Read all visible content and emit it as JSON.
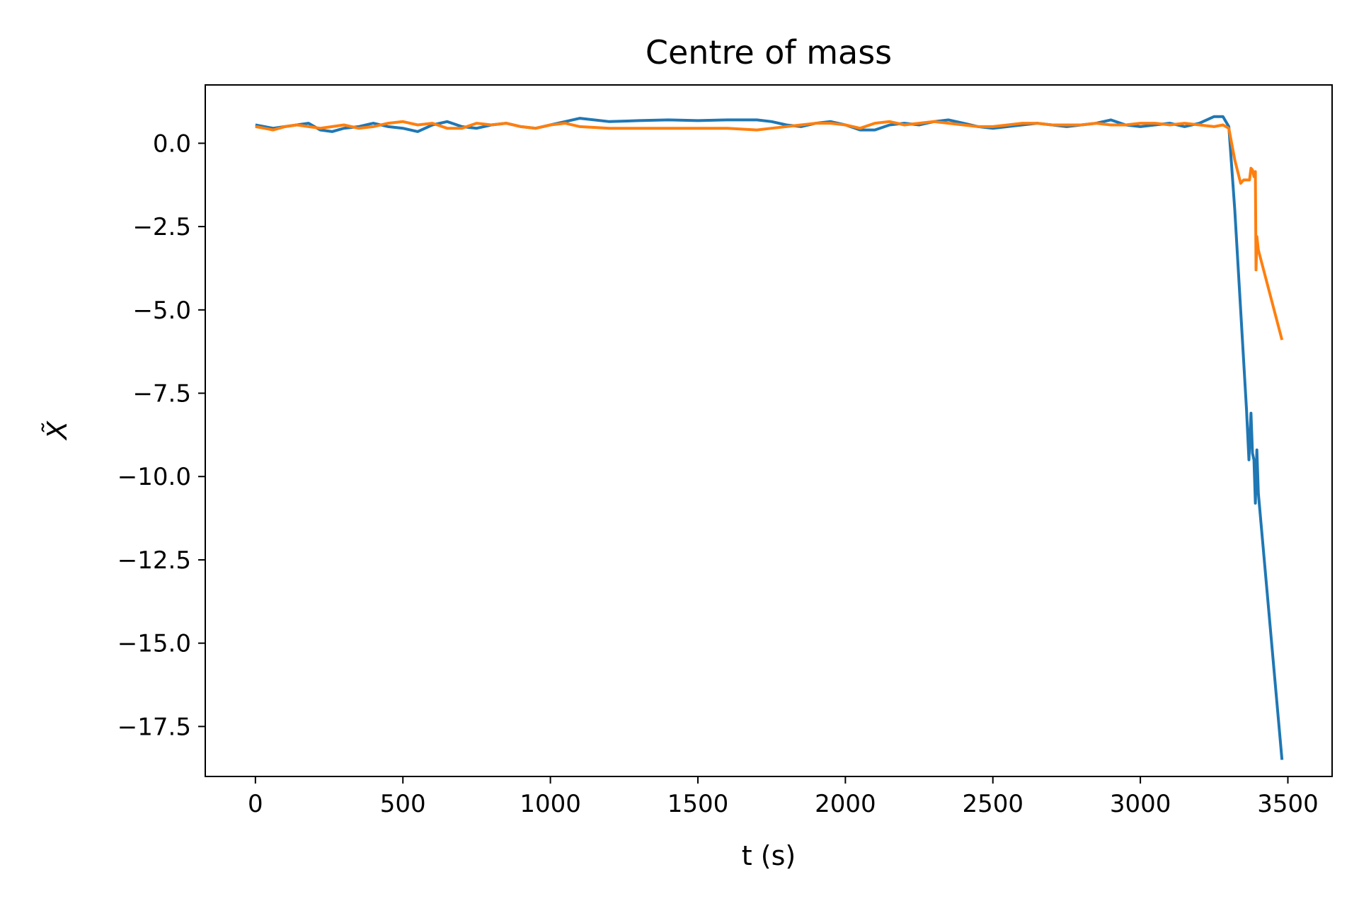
{
  "chart_data": {
    "type": "line",
    "title": "Centre of mass",
    "xlabel": "t (s)",
    "ylabel": "X̃",
    "xlim": [
      -170,
      3650
    ],
    "ylim": [
      -19.0,
      1.75
    ],
    "xticks": [
      0,
      500,
      1000,
      1500,
      2000,
      2500,
      3000,
      3500
    ],
    "xtick_labels": [
      "0",
      "500",
      "1000",
      "1500",
      "2000",
      "2500",
      "3000",
      "3500"
    ],
    "yticks": [
      0.0,
      -2.5,
      -5.0,
      -7.5,
      -10.0,
      -12.5,
      -15.0,
      -17.5
    ],
    "ytick_labels": [
      "0.0",
      "−2.5",
      "−5.0",
      "−7.5",
      "−10.0",
      "−12.5",
      "−15.0",
      "−17.5"
    ],
    "grid": false,
    "legend": "none",
    "series": [
      {
        "color": "#1f77b4",
        "x": [
          0,
          30,
          60,
          100,
          140,
          180,
          220,
          260,
          300,
          350,
          400,
          450,
          500,
          550,
          600,
          650,
          700,
          750,
          800,
          850,
          900,
          950,
          1000,
          1050,
          1100,
          1200,
          1300,
          1400,
          1500,
          1600,
          1700,
          1750,
          1800,
          1850,
          1900,
          1950,
          2000,
          2050,
          2100,
          2150,
          2200,
          2250,
          2300,
          2350,
          2400,
          2450,
          2500,
          2550,
          2600,
          2650,
          2700,
          2750,
          2800,
          2850,
          2900,
          2950,
          3000,
          3050,
          3100,
          3150,
          3200,
          3250,
          3280,
          3300,
          3320,
          3340,
          3360,
          3368,
          3375,
          3380,
          3385,
          3390,
          3395,
          3400,
          3480
        ],
        "y": [
          0.55,
          0.5,
          0.45,
          0.5,
          0.55,
          0.6,
          0.4,
          0.35,
          0.45,
          0.5,
          0.6,
          0.5,
          0.45,
          0.35,
          0.55,
          0.65,
          0.5,
          0.45,
          0.55,
          0.6,
          0.5,
          0.45,
          0.55,
          0.65,
          0.75,
          0.65,
          0.68,
          0.7,
          0.68,
          0.7,
          0.7,
          0.65,
          0.55,
          0.5,
          0.6,
          0.65,
          0.55,
          0.4,
          0.4,
          0.55,
          0.6,
          0.55,
          0.65,
          0.7,
          0.6,
          0.5,
          0.45,
          0.5,
          0.55,
          0.6,
          0.55,
          0.5,
          0.55,
          0.6,
          0.7,
          0.55,
          0.5,
          0.55,
          0.6,
          0.5,
          0.6,
          0.8,
          0.8,
          0.5,
          -2.0,
          -5.0,
          -8.0,
          -9.5,
          -8.1,
          -9.3,
          -9.5,
          -10.8,
          -9.2,
          -10.5,
          -18.5
        ]
      },
      {
        "color": "#ff7f0e",
        "x": [
          0,
          30,
          60,
          100,
          140,
          180,
          220,
          260,
          300,
          350,
          400,
          450,
          500,
          550,
          600,
          650,
          700,
          750,
          800,
          850,
          900,
          950,
          1000,
          1050,
          1100,
          1200,
          1300,
          1400,
          1500,
          1600,
          1700,
          1750,
          1800,
          1850,
          1900,
          1950,
          2000,
          2050,
          2100,
          2150,
          2200,
          2250,
          2300,
          2350,
          2400,
          2450,
          2500,
          2550,
          2600,
          2650,
          2700,
          2750,
          2800,
          2850,
          2900,
          2950,
          3000,
          3050,
          3100,
          3150,
          3200,
          3250,
          3280,
          3300,
          3320,
          3340,
          3350,
          3370,
          3375,
          3380,
          3385,
          3390,
          3392,
          3395,
          3400,
          3480
        ],
        "y": [
          0.5,
          0.45,
          0.4,
          0.5,
          0.55,
          0.5,
          0.45,
          0.5,
          0.55,
          0.45,
          0.5,
          0.6,
          0.65,
          0.55,
          0.6,
          0.45,
          0.45,
          0.6,
          0.55,
          0.6,
          0.5,
          0.45,
          0.55,
          0.6,
          0.5,
          0.45,
          0.45,
          0.45,
          0.45,
          0.45,
          0.4,
          0.45,
          0.5,
          0.55,
          0.6,
          0.6,
          0.55,
          0.45,
          0.6,
          0.65,
          0.55,
          0.6,
          0.65,
          0.6,
          0.55,
          0.5,
          0.5,
          0.55,
          0.6,
          0.6,
          0.55,
          0.55,
          0.55,
          0.6,
          0.55,
          0.55,
          0.6,
          0.6,
          0.55,
          0.6,
          0.55,
          0.5,
          0.55,
          0.45,
          -0.5,
          -1.2,
          -1.1,
          -1.1,
          -0.75,
          -0.8,
          -1.0,
          -0.85,
          -3.8,
          -2.8,
          -3.2,
          -5.9
        ]
      }
    ]
  }
}
